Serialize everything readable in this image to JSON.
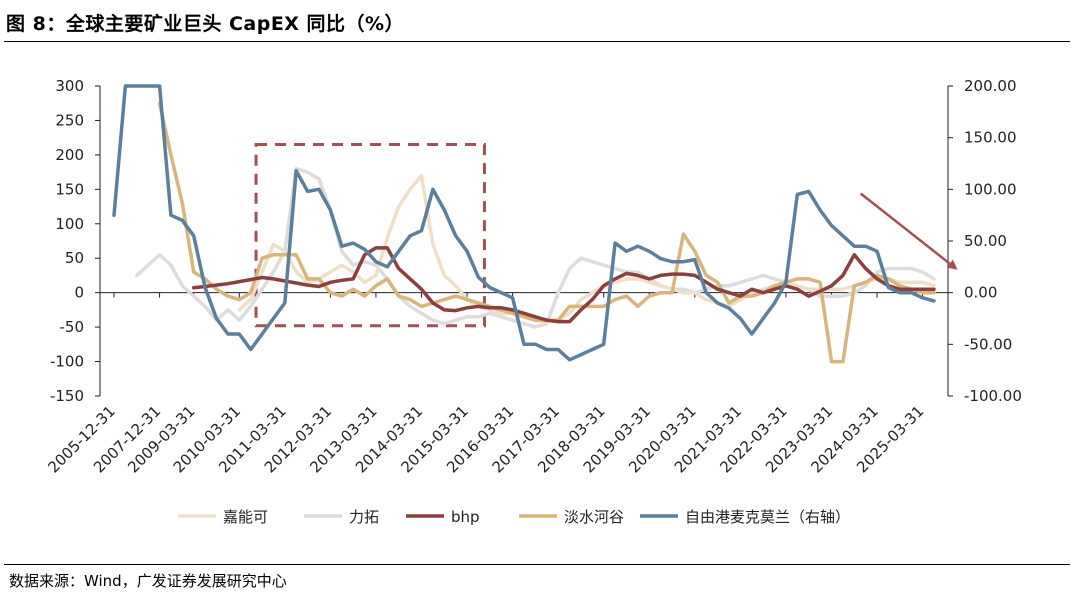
{
  "figure_title": "图 8：全球主要矿业巨头 CapEX 同比（%）",
  "source": "数据来源：Wind，广发证券发展研究中心",
  "colors": {
    "嘉能可": "#eee0c8",
    "力拓": "#dcdcdc",
    "bhp": "#8c3f3f",
    "淡水河谷": "#d8b57c",
    "自由港麦克莫兰": "#5c7f9c",
    "annotation": "#a05252"
  },
  "chart_data": {
    "type": "line",
    "title": "全球主要矿业巨头 CapEX 同比（%）",
    "x": [
      "2005-12-31",
      "2006-06-30",
      "2006-12-31",
      "2007-06-30",
      "2007-12-31",
      "2008-06-30",
      "2008-12-31",
      "2009-03-31",
      "2009-06-30",
      "2009-09-30",
      "2009-12-31",
      "2010-03-31",
      "2010-06-30",
      "2010-09-30",
      "2010-12-31",
      "2011-03-31",
      "2011-06-30",
      "2011-09-30",
      "2011-12-31",
      "2012-03-31",
      "2012-06-30",
      "2012-09-30",
      "2012-12-31",
      "2013-03-31",
      "2013-06-30",
      "2013-09-30",
      "2013-12-31",
      "2014-03-31",
      "2014-06-30",
      "2014-09-30",
      "2014-12-31",
      "2015-03-31",
      "2015-06-30",
      "2015-09-30",
      "2015-12-31",
      "2016-03-31",
      "2016-06-30",
      "2016-09-30",
      "2016-12-31",
      "2017-03-31",
      "2017-06-30",
      "2017-09-30",
      "2017-12-31",
      "2018-03-31",
      "2018-06-30",
      "2018-09-30",
      "2018-12-31",
      "2019-03-31",
      "2019-06-30",
      "2019-09-30",
      "2019-12-31",
      "2020-03-31",
      "2020-06-30",
      "2020-09-30",
      "2020-12-31",
      "2021-03-31",
      "2021-06-30",
      "2021-09-30",
      "2021-12-31",
      "2022-03-31",
      "2022-06-30",
      "2022-09-30",
      "2022-12-31",
      "2023-03-31",
      "2023-06-30",
      "2023-09-30",
      "2023-12-31",
      "2024-03-31",
      "2024-06-30",
      "2024-09-30",
      "2024-12-31",
      "2025-03-31",
      "2025-06-30"
    ],
    "x_tick_labels": [
      "2005-12-31",
      "2007-12-31",
      "2009-03-31",
      "2010-03-31",
      "2011-03-31",
      "2012-03-31",
      "2013-03-31",
      "2014-03-31",
      "2015-03-31",
      "2016-03-31",
      "2017-03-31",
      "2018-03-31",
      "2019-03-31",
      "2020-03-31",
      "2021-03-31",
      "2022-03-31",
      "2023-03-31",
      "2024-03-31",
      "2025-03-31"
    ],
    "y_left": {
      "ylim": [
        -150,
        300
      ],
      "ticks": [
        300,
        250,
        200,
        150,
        100,
        50,
        0,
        -50,
        -100,
        -150
      ]
    },
    "y_right": {
      "ylim": [
        -100,
        200
      ],
      "ticks": [
        "200.00",
        "150.00",
        "100.00",
        "50.00",
        "0.00",
        "-50.00",
        "-100.00"
      ]
    },
    "series": [
      {
        "name": "嘉能可",
        "axis": "left",
        "values": [
          null,
          null,
          null,
          null,
          null,
          null,
          null,
          null,
          null,
          null,
          null,
          -25,
          -10,
          30,
          70,
          60,
          30,
          15,
          20,
          30,
          40,
          30,
          15,
          25,
          80,
          125,
          150,
          170,
          70,
          25,
          10,
          -10,
          -20,
          -25,
          -30,
          -30,
          -35,
          -40,
          -42,
          -40,
          -30,
          -10,
          0,
          10,
          15,
          20,
          20,
          15,
          10,
          5,
          0,
          0,
          -10,
          -15,
          -20,
          -10,
          0,
          5,
          10,
          15,
          10,
          5,
          5,
          5,
          5,
          10,
          15,
          20,
          20,
          15,
          15,
          15,
          10
        ]
      },
      {
        "name": "力拓",
        "axis": "left",
        "values": [
          null,
          null,
          25,
          40,
          55,
          40,
          10,
          -5,
          -20,
          -40,
          -25,
          -40,
          -20,
          5,
          30,
          60,
          180,
          175,
          165,
          120,
          60,
          40,
          45,
          40,
          20,
          -5,
          -20,
          -30,
          -40,
          -45,
          -40,
          -35,
          -35,
          -30,
          -35,
          -40,
          -45,
          -50,
          -45,
          0,
          35,
          50,
          45,
          40,
          35,
          30,
          30,
          20,
          10,
          5,
          5,
          0,
          5,
          10,
          10,
          15,
          20,
          25,
          20,
          15,
          10,
          5,
          -5,
          -5,
          -5,
          0,
          10,
          30,
          35,
          35,
          35,
          30,
          20
        ]
      },
      {
        "name": "bhp",
        "axis": "left",
        "values": [
          null,
          null,
          null,
          null,
          null,
          null,
          null,
          7,
          9,
          11,
          13,
          16,
          19,
          22,
          20,
          17,
          14,
          11,
          9,
          15,
          18,
          20,
          55,
          65,
          65,
          35,
          20,
          5,
          -15,
          -25,
          -26,
          -22,
          -20,
          -22,
          -22,
          -25,
          -30,
          -35,
          -40,
          -42,
          -42,
          -25,
          -10,
          10,
          20,
          28,
          25,
          20,
          25,
          27,
          27,
          25,
          15,
          5,
          0,
          -5,
          5,
          0,
          5,
          10,
          5,
          -5,
          2,
          10,
          25,
          55,
          35,
          20,
          10,
          5,
          5,
          5,
          5
        ]
      },
      {
        "name": "淡水河谷",
        "axis": "left",
        "values": [
          null,
          null,
          null,
          null,
          275,
          200,
          130,
          30,
          20,
          5,
          -5,
          -10,
          0,
          50,
          55,
          55,
          55,
          20,
          20,
          0,
          -5,
          5,
          -5,
          10,
          20,
          -5,
          -10,
          -20,
          -15,
          -10,
          -5,
          -10,
          -15,
          -20,
          -25,
          -30,
          -35,
          -40,
          -40,
          -40,
          -20,
          -20,
          -20,
          -20,
          -10,
          -5,
          -20,
          -5,
          0,
          0,
          85,
          60,
          25,
          15,
          -15,
          -5,
          -5,
          0,
          10,
          15,
          20,
          20,
          15,
          -100,
          -100,
          10,
          15,
          25,
          20,
          10,
          5,
          0,
          0
        ]
      },
      {
        "name": "自由港麦克莫兰（右轴）",
        "axis": "right",
        "values": [
          75,
          200,
          200,
          200,
          200,
          75,
          70,
          55,
          5,
          -25,
          -40,
          -40,
          -55,
          -40,
          -25,
          -10,
          118,
          98,
          100,
          80,
          45,
          48,
          42,
          30,
          25,
          40,
          55,
          60,
          100,
          80,
          55,
          40,
          15,
          5,
          0,
          -5,
          -50,
          -50,
          -55,
          -55,
          -65,
          -60,
          -55,
          -50,
          48,
          40,
          45,
          40,
          33,
          30,
          30,
          32,
          0,
          -10,
          -15,
          -25,
          -40,
          -25,
          -10,
          10,
          95,
          98,
          80,
          65,
          55,
          45,
          45,
          40,
          5,
          0,
          0,
          -5,
          -8
        ]
      }
    ],
    "legend": {
      "placement": "bottom",
      "entries": [
        "嘉能可",
        "力拓",
        "bhp",
        "淡水河谷",
        "自由港麦克莫兰（右轴）"
      ]
    },
    "annotations": [
      "dashed highlight box 2010–2015",
      "downward arrow 2024–2025"
    ]
  }
}
